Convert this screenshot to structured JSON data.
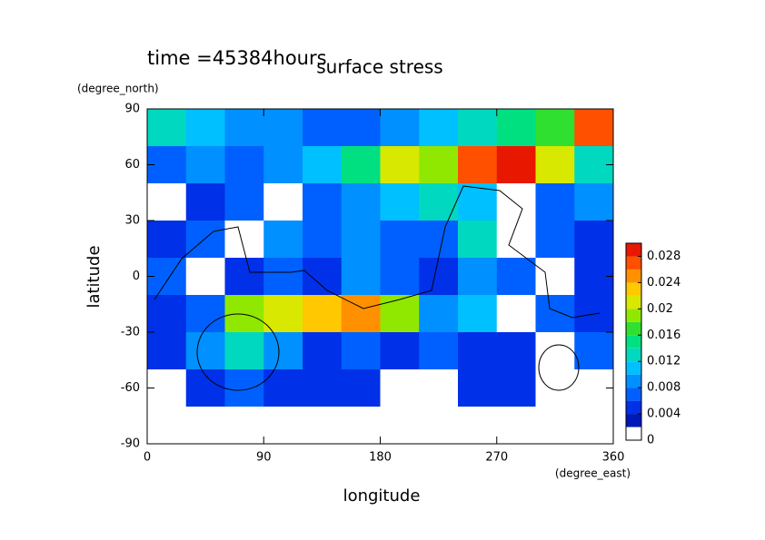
{
  "chart_data": {
    "type": "contourf",
    "title": "surface stress",
    "subtitle": "time =45384hours",
    "x_label": "longitude",
    "y_label": "latitude",
    "x_unit": "(degree_east)",
    "y_unit": "(degree_north)",
    "x": [
      15,
      45,
      75,
      105,
      135,
      165,
      195,
      225,
      255,
      285,
      315,
      345
    ],
    "y": [
      80,
      60,
      40,
      20,
      0,
      -20,
      -40,
      -60,
      -80
    ],
    "z": [
      [
        0.012,
        0.01,
        0.008,
        0.008,
        0.006,
        0.006,
        0.008,
        0.01,
        0.012,
        0.014,
        0.016,
        0.026
      ],
      [
        0.006,
        0.008,
        0.006,
        0.008,
        0.01,
        0.014,
        0.02,
        0.018,
        0.026,
        0.029,
        0.02,
        0.012
      ],
      [
        0.001,
        0.004,
        0.006,
        0.001,
        0.006,
        0.008,
        0.01,
        0.012,
        0.01,
        0.001,
        0.006,
        0.008
      ],
      [
        0.004,
        0.006,
        0.001,
        0.008,
        0.006,
        0.008,
        0.006,
        0.006,
        0.012,
        0.001,
        0.006,
        0.004
      ],
      [
        0.006,
        0.001,
        0.004,
        0.006,
        0.004,
        0.008,
        0.006,
        0.004,
        0.008,
        0.006,
        0.001,
        0.004
      ],
      [
        0.004,
        0.006,
        0.018,
        0.02,
        0.022,
        0.024,
        0.018,
        0.008,
        0.01,
        0.001,
        0.006,
        0.004
      ],
      [
        0.004,
        0.008,
        0.012,
        0.008,
        0.004,
        0.006,
        0.004,
        0.006,
        0.004,
        0.004,
        0.001,
        0.006
      ],
      [
        0.001,
        0.004,
        0.006,
        0.004,
        0.004,
        0.004,
        0.001,
        0.001,
        0.004,
        0.004,
        0.001,
        0.001
      ],
      [
        0.001,
        0.001,
        0.001,
        0.001,
        0.001,
        0.001,
        0.001,
        0.001,
        0.001,
        0.001,
        0.001,
        0.001
      ]
    ],
    "xlim": [
      0,
      360
    ],
    "ylim": [
      -90,
      90
    ],
    "xticks": [
      0,
      90,
      180,
      270,
      360
    ],
    "yticks": [
      -90,
      -60,
      -30,
      0,
      30,
      60,
      90
    ],
    "levels": [
      0,
      0.002,
      0.004,
      0.006,
      0.008,
      0.01,
      0.012,
      0.014,
      0.016,
      0.018,
      0.02,
      0.022,
      0.024,
      0.026,
      0.028,
      0.03
    ],
    "colors": [
      "#ffffff",
      "#0018b8",
      "#0030e8",
      "#0060ff",
      "#0090ff",
      "#00c0ff",
      "#00d8c0",
      "#00e080",
      "#30e030",
      "#90e800",
      "#d8e800",
      "#ffc800",
      "#ff9000",
      "#ff5000",
      "#e81800"
    ],
    "zlim": [
      0,
      0.03
    ],
    "zticks": [
      0,
      0.004,
      0.008,
      0.012,
      0.016,
      0.02,
      0.024,
      0.028
    ]
  }
}
